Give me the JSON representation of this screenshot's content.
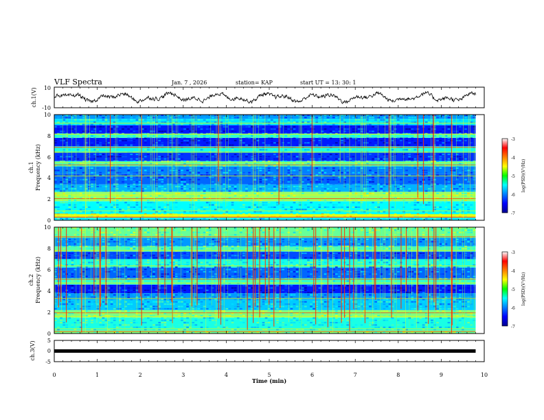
{
  "chart_data": {
    "type": "heatmap",
    "title": "VLF Spectra",
    "date": "Jan. 7 , 2026",
    "station": "station= KAP",
    "start_ut": "start UT =  13: 30: 1",
    "x_axis": {
      "label": "Time (min)",
      "range": [
        0,
        10
      ],
      "ticks": [
        "0",
        "1",
        "2",
        "3",
        "4",
        "5",
        "6",
        "7",
        "8",
        "9",
        "10"
      ]
    },
    "panels": [
      {
        "id": "ch1-waveform",
        "type": "line",
        "ylabel": "ch.1(V)",
        "yrange": [
          -10,
          10
        ],
        "yticks": [
          "10",
          "-10"
        ],
        "amplitude_range": [
          -6,
          6
        ]
      },
      {
        "id": "ch1-spectrogram",
        "type": "heatmap",
        "ylabel_channel": "ch.1",
        "ylabel": "Frequency (kHz)",
        "yrange": [
          0,
          10
        ],
        "yticks": [
          "0",
          "2",
          "4",
          "6",
          "8",
          "10"
        ],
        "colorbar": {
          "label": "log(PSD)(V²/Hz)",
          "range": [
            -7,
            -3
          ],
          "ticks": [
            "-3",
            "-4",
            "-5",
            "-6",
            "-7"
          ]
        },
        "bands_khz": [
          {
            "low": 0.0,
            "high": 0.25,
            "level": -5.6
          },
          {
            "low": 0.25,
            "high": 0.55,
            "level": -4.6
          },
          {
            "low": 0.55,
            "high": 1.8,
            "level": -5.5
          },
          {
            "low": 1.8,
            "high": 2.7,
            "level": -4.9
          },
          {
            "low": 2.7,
            "high": 3.4,
            "level": -5.8
          },
          {
            "low": 3.4,
            "high": 4.4,
            "level": -6.1
          },
          {
            "low": 4.4,
            "high": 5.1,
            "level": -6.0
          },
          {
            "low": 5.1,
            "high": 5.6,
            "level": -5.2
          },
          {
            "low": 5.6,
            "high": 6.4,
            "level": -6.3
          },
          {
            "low": 6.4,
            "high": 7.0,
            "level": -5.4
          },
          {
            "low": 7.0,
            "high": 7.8,
            "level": -6.4
          },
          {
            "low": 7.8,
            "high": 8.2,
            "level": -5.3
          },
          {
            "low": 8.2,
            "high": 9.0,
            "level": -6.4
          },
          {
            "low": 9.0,
            "high": 9.6,
            "level": -5.6
          },
          {
            "low": 9.6,
            "high": 10.0,
            "level": -5.9
          }
        ],
        "lines_khz": [
          0.3,
          0.55,
          0.9,
          2.05,
          2.4,
          4.2,
          5.25,
          5.45,
          6.45,
          6.9,
          8.15,
          9.2
        ]
      },
      {
        "id": "ch2-spectrogram",
        "type": "heatmap",
        "ylabel_channel": "ch.2",
        "ylabel": "Frequency (kHz)",
        "yrange": [
          0,
          10
        ],
        "yticks": [
          "0",
          "2",
          "4",
          "6",
          "8",
          "10"
        ],
        "colorbar": {
          "label": "log(PSD)(V²/Hz)",
          "range": [
            -7,
            -3
          ],
          "ticks": [
            "-3",
            "-4",
            "-5",
            "-6",
            "-7"
          ]
        },
        "bands_khz": [
          {
            "low": 0.0,
            "high": 0.3,
            "level": -5.0
          },
          {
            "low": 0.3,
            "high": 1.5,
            "level": -5.4
          },
          {
            "low": 1.5,
            "high": 2.2,
            "level": -5.0
          },
          {
            "low": 2.2,
            "high": 3.2,
            "level": -5.7
          },
          {
            "low": 3.2,
            "high": 3.8,
            "level": -5.9
          },
          {
            "low": 3.8,
            "high": 4.6,
            "level": -6.4
          },
          {
            "low": 4.6,
            "high": 5.2,
            "level": -5.3
          },
          {
            "low": 5.2,
            "high": 6.2,
            "level": -6.1
          },
          {
            "low": 6.2,
            "high": 7.0,
            "level": -5.4
          },
          {
            "low": 7.0,
            "high": 7.7,
            "level": -6.2
          },
          {
            "low": 7.7,
            "high": 8.2,
            "level": -5.2
          },
          {
            "low": 8.2,
            "high": 9.0,
            "level": -5.9
          },
          {
            "low": 9.0,
            "high": 10.0,
            "level": -5.1
          }
        ],
        "lines_khz": [
          0.2,
          0.45,
          1.6,
          1.95,
          3.3,
          4.75,
          5.1,
          6.35,
          7.8,
          9.1
        ]
      },
      {
        "id": "ch3-waveform",
        "type": "line",
        "ylabel": "ch.3(V)",
        "yrange": [
          -5,
          5
        ],
        "yticks": [
          "5",
          "0",
          "-5"
        ],
        "level": 0
      }
    ],
    "data_end_min": 9.8
  }
}
